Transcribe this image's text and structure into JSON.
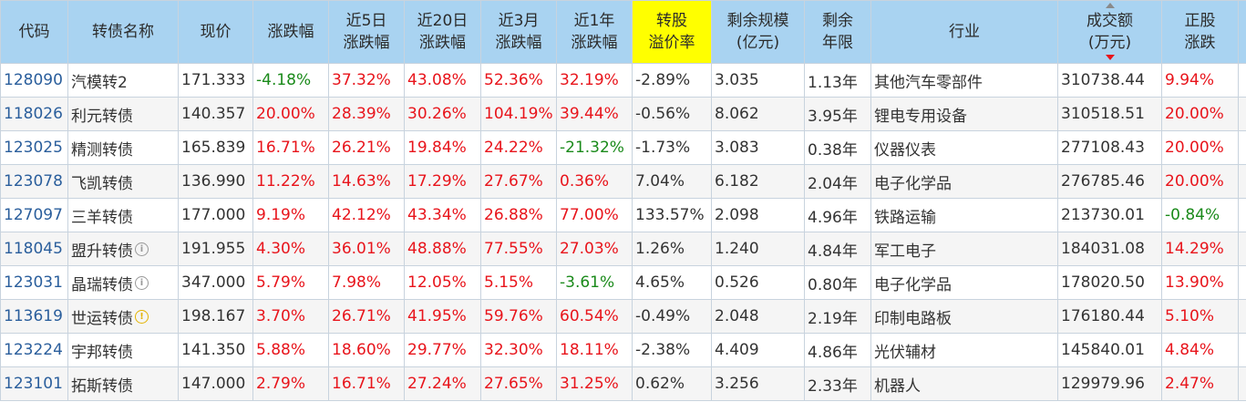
{
  "headers": [
    {
      "line1": "代码",
      "line2": ""
    },
    {
      "line1": "转债名称",
      "line2": ""
    },
    {
      "line1": "现价",
      "line2": ""
    },
    {
      "line1": "涨跌幅",
      "line2": ""
    },
    {
      "line1": "近5日",
      "line2": "涨跌幅"
    },
    {
      "line1": "近20日",
      "line2": "涨跌幅"
    },
    {
      "line1": "近3月",
      "line2": "涨跌幅"
    },
    {
      "line1": "近1年",
      "line2": "涨跌幅"
    },
    {
      "line1": "转股",
      "line2": "溢价率"
    },
    {
      "line1": "剩余规模",
      "line2": "(亿元)"
    },
    {
      "line1": "剩余",
      "line2": "年限"
    },
    {
      "line1": "行业",
      "line2": ""
    },
    {
      "line1": "成交额",
      "line2": "(万元)"
    },
    {
      "line1": "正股",
      "line2": "涨跌"
    }
  ],
  "rows": [
    {
      "code": "128090",
      "name": "汽模转2",
      "icon": "",
      "price": "171.333",
      "chg": "-4.18%",
      "chg5": "37.32%",
      "chg20": "43.08%",
      "chg3m": "52.36%",
      "chg1y": "32.19%",
      "premium": "-2.89%",
      "scale": "3.035",
      "years": "1.13年",
      "industry": "其他汽车零部件",
      "turnover": "310738.44",
      "stock_chg": "9.94%"
    },
    {
      "code": "118026",
      "name": "利元转债",
      "icon": "",
      "price": "140.357",
      "chg": "20.00%",
      "chg5": "28.39%",
      "chg20": "30.26%",
      "chg3m": "104.19%",
      "chg1y": "39.44%",
      "premium": "-0.56%",
      "scale": "8.062",
      "years": "3.95年",
      "industry": "锂电专用设备",
      "turnover": "310518.51",
      "stock_chg": "20.00%"
    },
    {
      "code": "123025",
      "name": "精测转债",
      "icon": "",
      "price": "165.839",
      "chg": "16.71%",
      "chg5": "26.21%",
      "chg20": "19.84%",
      "chg3m": "24.22%",
      "chg1y": "-21.32%",
      "premium": "-1.73%",
      "scale": "3.083",
      "years": "0.38年",
      "industry": "仪器仪表",
      "turnover": "277108.43",
      "stock_chg": "20.00%"
    },
    {
      "code": "123078",
      "name": "飞凯转债",
      "icon": "",
      "price": "136.990",
      "chg": "11.22%",
      "chg5": "14.63%",
      "chg20": "17.29%",
      "chg3m": "27.67%",
      "chg1y": "0.36%",
      "premium": "7.04%",
      "scale": "6.182",
      "years": "2.04年",
      "industry": "电子化学品",
      "turnover": "276785.46",
      "stock_chg": "20.00%"
    },
    {
      "code": "127097",
      "name": "三羊转债",
      "icon": "",
      "price": "177.000",
      "chg": "9.19%",
      "chg5": "42.12%",
      "chg20": "43.34%",
      "chg3m": "26.88%",
      "chg1y": "77.00%",
      "premium": "133.57%",
      "scale": "2.098",
      "years": "4.96年",
      "industry": "铁路运输",
      "turnover": "213730.01",
      "stock_chg": "-0.84%"
    },
    {
      "code": "118045",
      "name": "盟升转债",
      "icon": "info-icon",
      "price": "191.955",
      "chg": "4.30%",
      "chg5": "36.01%",
      "chg20": "48.88%",
      "chg3m": "77.55%",
      "chg1y": "27.03%",
      "premium": "1.26%",
      "scale": "1.240",
      "years": "4.84年",
      "industry": "军工电子",
      "turnover": "184031.08",
      "stock_chg": "14.29%"
    },
    {
      "code": "123031",
      "name": "晶瑞转债",
      "icon": "info-icon",
      "price": "347.000",
      "chg": "5.79%",
      "chg5": "7.98%",
      "chg20": "12.05%",
      "chg3m": "5.15%",
      "chg1y": "-3.61%",
      "premium": "4.65%",
      "scale": "0.526",
      "years": "0.80年",
      "industry": "电子化学品",
      "turnover": "178020.50",
      "stock_chg": "13.90%"
    },
    {
      "code": "113619",
      "name": "世运转债",
      "icon": "warning-icon",
      "price": "198.167",
      "chg": "3.70%",
      "chg5": "26.71%",
      "chg20": "41.95%",
      "chg3m": "59.76%",
      "chg1y": "60.54%",
      "premium": "-0.49%",
      "scale": "2.048",
      "years": "2.19年",
      "industry": "印制电路板",
      "turnover": "176180.44",
      "stock_chg": "5.10%"
    },
    {
      "code": "123224",
      "name": "宇邦转债",
      "icon": "",
      "price": "141.350",
      "chg": "5.88%",
      "chg5": "18.60%",
      "chg20": "29.77%",
      "chg3m": "32.30%",
      "chg1y": "18.11%",
      "premium": "-2.38%",
      "scale": "4.409",
      "years": "4.86年",
      "industry": "光伏辅材",
      "turnover": "145840.01",
      "stock_chg": "4.84%"
    },
    {
      "code": "123101",
      "name": "拓斯转债",
      "icon": "",
      "price": "147.000",
      "chg": "2.79%",
      "chg5": "16.71%",
      "chg20": "27.24%",
      "chg3m": "27.65%",
      "chg1y": "31.25%",
      "premium": "0.62%",
      "scale": "3.256",
      "years": "2.33年",
      "industry": "机器人",
      "turnover": "129979.96",
      "stock_chg": "2.47%"
    }
  ],
  "colors": {
    "up": "#e8141b",
    "down": "#1a8a1a",
    "header_bg": "#a9d3f1",
    "highlight_bg": "#ffff00",
    "code": "#2a5e9c"
  }
}
